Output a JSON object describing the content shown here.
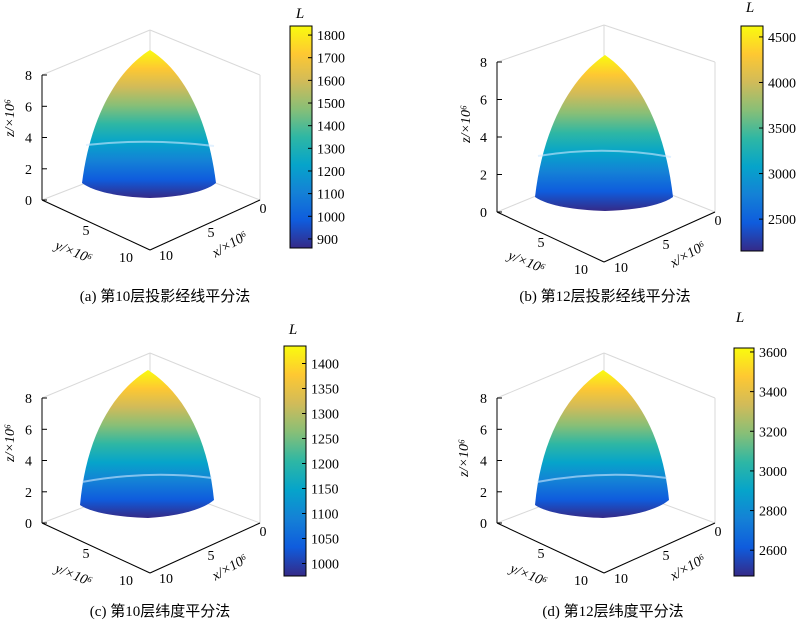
{
  "colormap": "parula",
  "colormap_stops": [
    "#352a87",
    "#0f5cdd",
    "#1481d6",
    "#06a4ca",
    "#2eb7a4",
    "#87bf77",
    "#d1bb59",
    "#fec832",
    "#f9fb0e"
  ],
  "chart_data": [
    {
      "type": "surface",
      "caption": "(a) 第10层投影经线平分法",
      "colorbar_title": "L",
      "colorbar_ticks": [
        "900",
        "1000",
        "1100",
        "1200",
        "1300",
        "1400",
        "1500",
        "1600",
        "1700",
        "1800"
      ],
      "clim": [
        860,
        1840
      ],
      "xlabel": "x/×10⁶",
      "ylabel": "y/×10⁶",
      "zlabel": "z/×10⁶",
      "xticks": [
        "0",
        "5",
        "10"
      ],
      "yticks": [
        "5",
        "10"
      ],
      "zticks": [
        "0",
        "2",
        "4",
        "6",
        "8"
      ]
    },
    {
      "type": "surface",
      "caption": "(b) 第12层投影经线平分法",
      "colorbar_title": "L",
      "colorbar_ticks": [
        "2500",
        "3000",
        "3500",
        "4000",
        "4500"
      ],
      "clim": [
        2150,
        4620
      ],
      "xlabel": "x/×10⁶",
      "ylabel": "y/×10⁶",
      "zlabel": "z/×10⁶",
      "xticks": [
        "0",
        "5",
        "10"
      ],
      "yticks": [
        "5",
        "10"
      ],
      "zticks": [
        "0",
        "2",
        "4",
        "6",
        "8"
      ]
    },
    {
      "type": "surface",
      "caption": "(c) 第10层纬度平分法",
      "colorbar_title": "L",
      "colorbar_ticks": [
        "1000",
        "1050",
        "1100",
        "1150",
        "1200",
        "1250",
        "1300",
        "1350",
        "1400"
      ],
      "clim": [
        975,
        1435
      ],
      "xlabel": "x/×10⁶",
      "ylabel": "y/×10⁶",
      "zlabel": "z/×10⁶",
      "xticks": [
        "0",
        "5",
        "10"
      ],
      "yticks": [
        "5",
        "10"
      ],
      "zticks": [
        "0",
        "2",
        "4",
        "6",
        "8"
      ]
    },
    {
      "type": "surface",
      "caption": "(d) 第12层纬度平分法",
      "colorbar_title": "L",
      "colorbar_ticks": [
        "2600",
        "2800",
        "3000",
        "3200",
        "3400",
        "3600"
      ],
      "clim": [
        2470,
        3620
      ],
      "xlabel": "x/×10⁶",
      "ylabel": "y/×10⁶",
      "zlabel": "z/×10⁶",
      "xticks": [
        "0",
        "5",
        "10"
      ],
      "yticks": [
        "5",
        "10"
      ],
      "zticks": [
        "0",
        "2",
        "4",
        "6",
        "8"
      ]
    }
  ]
}
